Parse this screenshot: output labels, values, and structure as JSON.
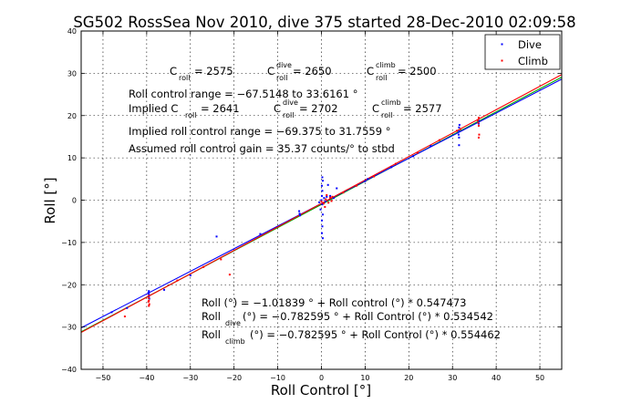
{
  "chart_data": {
    "type": "scatter",
    "title": "SG502 RossSea Nov 2010, dive 375 started 28-Dec-2010 02:09:58",
    "xlabel": "Roll Control [°]",
    "ylabel": "Roll [°]",
    "xlim": [
      -55,
      55
    ],
    "ylim": [
      -40,
      40
    ],
    "xticks": [
      "−50",
      "−40",
      "−30",
      "−20",
      "−10",
      "0",
      "10",
      "20",
      "30",
      "40",
      "50"
    ],
    "yticks": [
      "−40",
      "−30",
      "−20",
      "−10",
      "0",
      "10",
      "20",
      "30",
      "40"
    ],
    "grid": true,
    "legend_position": "top-right",
    "legend": [
      {
        "label": "Dive",
        "color": "#0000ff"
      },
      {
        "label": "Climb",
        "color": "#ff0000"
      }
    ],
    "annotations": {
      "c_roll_main": "C",
      "c_roll_sub": "roll",
      "c_roll_value": " = 2575",
      "c_dive_main": "C",
      "c_dive_sup": "dive",
      "c_dive_sub": "roll",
      "c_dive_value": " = 2650",
      "c_climb_main": "C",
      "c_climb_sup": "climb",
      "c_climb_sub": "roll",
      "c_climb_value": " = 2500",
      "range": "Roll control range = −67.5148 to 33.6161 °",
      "implied_prefix": "Implied C",
      "implied_sub": "roll",
      "implied_value": " = 2641",
      "implied_dive_main": "C",
      "implied_dive_sup": "dive",
      "implied_dive_sub": "roll",
      "implied_dive_value": " = 2702",
      "implied_climb_main": "C",
      "implied_climb_sup": "climb",
      "implied_climb_sub": "roll",
      "implied_climb_value": " = 2577",
      "implied_range": "Implied roll control range = −69.375 to 31.7559 °",
      "gain": "Assumed roll control gain = 35.37 counts/° to stbd",
      "fit_all": "Roll (°) = −1.01839 ° + Roll control (°) * 0.547473",
      "fit_dive_prefix": "Roll",
      "fit_dive_sub": "dive",
      "fit_dive_rest": " (°) = −0.782595 ° + Roll Control (°) * 0.534542",
      "fit_climb_prefix": "Roll",
      "fit_climb_sub": "climb",
      "fit_climb_rest": " (°) = −0.782595 ° + Roll Control (°) * 0.554462"
    },
    "fit_lines": [
      {
        "color": "#00aa00",
        "intercept": -1.01839,
        "slope": 0.547473
      },
      {
        "color": "#0000ff",
        "intercept": -0.782595,
        "slope": 0.534542
      },
      {
        "color": "#ff0000",
        "intercept": -0.782595,
        "slope": 0.554462
      }
    ],
    "series": [
      {
        "name": "Dive",
        "color": "#0000ff",
        "points": [
          [
            -39.5,
            -21.5
          ],
          [
            -39.5,
            -22.2
          ],
          [
            -39.5,
            -22.8
          ],
          [
            -39.4,
            -23.3
          ],
          [
            -39.6,
            -21.9
          ],
          [
            -5,
            -3.2
          ],
          [
            -5.1,
            -2.6
          ],
          [
            -4.9,
            -3.6
          ],
          [
            -0.5,
            -0.5
          ],
          [
            0,
            0
          ],
          [
            0.2,
            -1.0
          ],
          [
            0.1,
            1.0
          ],
          [
            0.2,
            2.2
          ],
          [
            0.1,
            3.4
          ],
          [
            0.3,
            4.6
          ],
          [
            0.2,
            5.4
          ],
          [
            -0.2,
            -2.2
          ],
          [
            0.3,
            -3.4
          ],
          [
            0.1,
            -4.8
          ],
          [
            0.2,
            -6.2
          ],
          [
            0.1,
            -7.8
          ],
          [
            0.3,
            -9.0
          ],
          [
            0.6,
            0.5
          ],
          [
            0.9,
            -0.3
          ],
          [
            1.2,
            0.8
          ],
          [
            2,
            1.0
          ],
          [
            2.8,
            0.5
          ],
          [
            3.5,
            2.8
          ],
          [
            1.5,
            3.6
          ],
          [
            10,
            4.5
          ],
          [
            10.6,
            5.0
          ],
          [
            16,
            7.8
          ],
          [
            21,
            10.4
          ],
          [
            25,
            12.8
          ],
          [
            31.5,
            17.2
          ],
          [
            31.5,
            16.3
          ],
          [
            31.4,
            15.5
          ],
          [
            31.6,
            17.8
          ],
          [
            31.5,
            14.8
          ],
          [
            31.5,
            13.0
          ],
          [
            36,
            18.8
          ],
          [
            36,
            18.1
          ],
          [
            -48,
            -26.5
          ],
          [
            -44.5,
            -25.5
          ],
          [
            -36,
            -21.2
          ],
          [
            -30,
            -17.8
          ],
          [
            -24,
            -8.6
          ],
          [
            -14,
            -8.0
          ]
        ]
      },
      {
        "name": "Climb",
        "color": "#ff0000",
        "points": [
          [
            -39.5,
            -23.2
          ],
          [
            -39.5,
            -23.8
          ],
          [
            -39.4,
            -24.6
          ],
          [
            -39.5,
            -22.6
          ],
          [
            -39.6,
            -24.0
          ],
          [
            -39.5,
            -25.0
          ],
          [
            -21,
            -17.6
          ],
          [
            -23,
            -14.0
          ],
          [
            0,
            -0.3
          ],
          [
            0.5,
            -0.8
          ],
          [
            1,
            0.2
          ],
          [
            1.6,
            -0.6
          ],
          [
            2,
            0.6
          ],
          [
            2.3,
            -0.2
          ],
          [
            2.5,
            0.8
          ],
          [
            0.8,
            -1.6
          ],
          [
            1.2,
            1.2
          ],
          [
            5,
            1.8
          ],
          [
            8,
            3.4
          ],
          [
            12,
            5.6
          ],
          [
            17,
            8.6
          ],
          [
            22,
            11.2
          ],
          [
            27,
            14.2
          ],
          [
            31,
            16.4
          ],
          [
            31.8,
            16.8
          ],
          [
            35.8,
            18.9
          ],
          [
            35.9,
            18.3
          ],
          [
            36,
            19.5
          ],
          [
            36,
            17.6
          ],
          [
            36.1,
            15.5
          ],
          [
            36,
            14.8
          ],
          [
            -45,
            -27.5
          ],
          [
            -33,
            -19.0
          ],
          [
            -27,
            -15.8
          ]
        ]
      }
    ]
  }
}
